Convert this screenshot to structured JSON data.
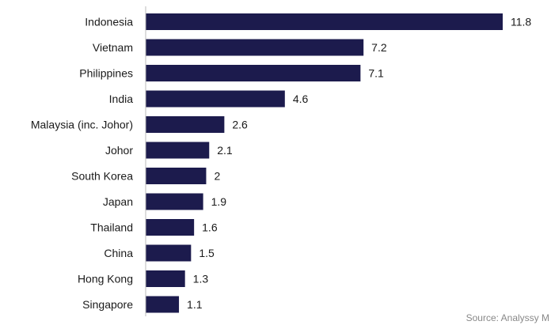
{
  "chart_data": {
    "type": "bar",
    "orientation": "horizontal",
    "categories": [
      "Indonesia",
      "Vietnam",
      "Philippines",
      "India",
      "Malaysia (inc. Johor)",
      "Johor",
      "South Korea",
      "Japan",
      "Thailand",
      "China",
      "Hong Kong",
      "Singapore"
    ],
    "values": [
      11.8,
      7.2,
      7.1,
      4.6,
      2.6,
      2.1,
      2,
      1.9,
      1.6,
      1.5,
      1.3,
      1.1
    ],
    "value_labels": [
      "11.8",
      "7.2",
      "7.1",
      "4.6",
      "2.6",
      "2.1",
      "2",
      "1.9",
      "1.6",
      "1.5",
      "1.3",
      "1.1"
    ],
    "title": "",
    "xlabel": "",
    "ylabel": "",
    "xlim": [
      0,
      11.8
    ],
    "grid": false,
    "legend": "none",
    "bar_color": "#1c1b4d"
  },
  "source_text": "Source: Analyssy M"
}
